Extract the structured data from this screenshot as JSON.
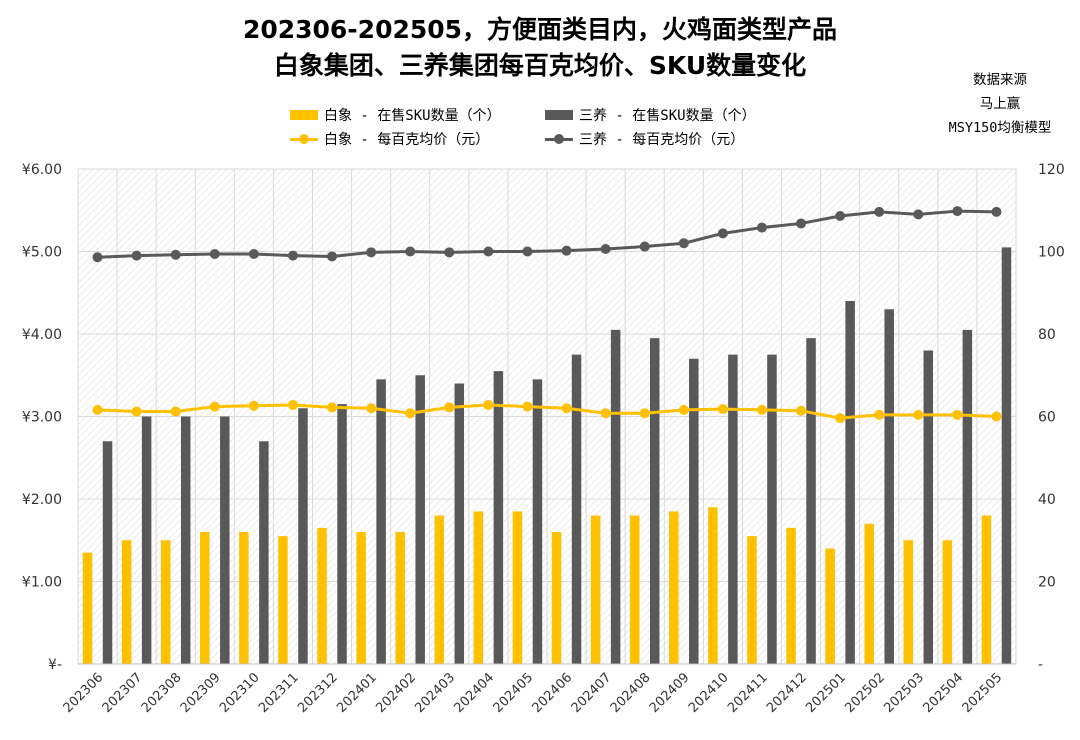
{
  "title": {
    "line1": "202306-202505，方便面类目内，火鸡面类型产品",
    "line2": "白象集团、三养集团每百克均价、SKU数量变化"
  },
  "source_note": {
    "line1": "数据来源",
    "line2": "马上赢",
    "line3": "MSY150均衡模型"
  },
  "legend": {
    "baixiang_sku": "白象 - 在售SKU数量（个）",
    "samyang_sku": "三养 - 在售SKU数量（个）",
    "baixiang_price": "白象 - 每百克均价（元）",
    "samyang_price": "三养 - 每百克均价（元）"
  },
  "colors": {
    "baixiang": "#FFC000",
    "samyang": "#595959",
    "grid": "#d9d9d9"
  },
  "chart_data": {
    "type": "bar",
    "categories": [
      "202306",
      "202307",
      "202308",
      "202309",
      "202310",
      "202311",
      "202312",
      "202401",
      "202402",
      "202403",
      "202404",
      "202405",
      "202406",
      "202407",
      "202408",
      "202409",
      "202410",
      "202411",
      "202412",
      "202501",
      "202502",
      "202503",
      "202504",
      "202505"
    ],
    "series": [
      {
        "name": "白象 - 在售SKU数量（个）",
        "type": "bar",
        "axis": "right",
        "values": [
          27,
          30,
          30,
          32,
          32,
          31,
          33,
          32,
          32,
          36,
          37,
          37,
          32,
          36,
          36,
          37,
          38,
          31,
          33,
          28,
          34,
          30,
          30,
          36
        ]
      },
      {
        "name": "三养 - 在售SKU数量（个）",
        "type": "bar",
        "axis": "right",
        "values": [
          54,
          60,
          60,
          60,
          54,
          62,
          63,
          69,
          70,
          68,
          71,
          69,
          75,
          81,
          79,
          74,
          75,
          75,
          79,
          88,
          86,
          76,
          81,
          101
        ]
      },
      {
        "name": "白象 - 每百克均价（元）",
        "type": "line",
        "axis": "left",
        "values": [
          3.08,
          3.06,
          3.06,
          3.12,
          3.13,
          3.14,
          3.11,
          3.1,
          3.04,
          3.11,
          3.14,
          3.12,
          3.1,
          3.04,
          3.04,
          3.08,
          3.09,
          3.08,
          3.07,
          2.98,
          3.02,
          3.02,
          3.02,
          3.0
        ]
      },
      {
        "name": "三养 - 每百克均价（元）",
        "type": "line",
        "axis": "left",
        "values": [
          4.93,
          4.95,
          4.96,
          4.97,
          4.97,
          4.95,
          4.94,
          4.99,
          5.0,
          4.99,
          5.0,
          5.0,
          5.01,
          5.03,
          5.06,
          5.1,
          5.22,
          5.29,
          5.34,
          5.43,
          5.48,
          5.45,
          5.49,
          5.48
        ]
      }
    ],
    "y_left": {
      "ylim": [
        0,
        6
      ],
      "ticks": [
        "¥-",
        "¥1.00",
        "¥2.00",
        "¥3.00",
        "¥4.00",
        "¥5.00",
        "¥6.00"
      ]
    },
    "y_right": {
      "ylim": [
        0,
        120
      ],
      "ticks": [
        "-",
        "20",
        "40",
        "60",
        "80",
        "100",
        "120"
      ]
    },
    "grid": true,
    "legend_position": "top"
  }
}
